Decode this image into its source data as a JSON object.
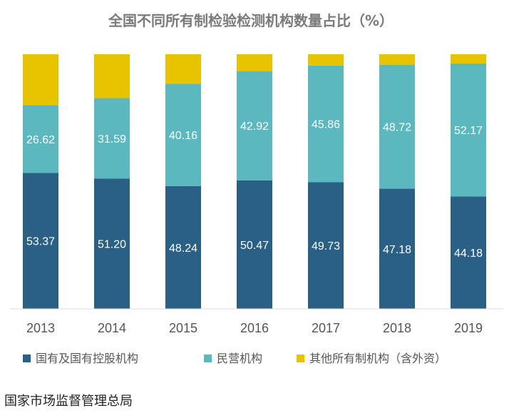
{
  "source": "国家市场监督管理总局",
  "chart_data": {
    "type": "bar",
    "stacked": true,
    "title": "全国不同所有制检验检测机构数量占比（%）",
    "categories": [
      "2013",
      "2014",
      "2015",
      "2016",
      "2017",
      "2018",
      "2019"
    ],
    "ylim": [
      0,
      100
    ],
    "grid": false,
    "legend_position": "bottom",
    "series": [
      {
        "name": "国有及国有控股机构",
        "color": "#2a5f86",
        "values": [
          53.37,
          51.2,
          48.24,
          50.47,
          49.73,
          47.18,
          44.18
        ],
        "labels": [
          "53.37",
          "51.20",
          "48.24",
          "50.47",
          "49.73",
          "47.18",
          "44.18"
        ]
      },
      {
        "name": "民营机构",
        "color": "#5bb8bf",
        "values": [
          26.62,
          31.59,
          40.16,
          42.92,
          45.86,
          48.72,
          52.17
        ],
        "labels": [
          "26.62",
          "31.59",
          "40.16",
          "42.92",
          "45.86",
          "48.72",
          "52.17"
        ]
      },
      {
        "name": "其他所有制机构（含外资）",
        "color": "#e8c400",
        "values": [
          20.01,
          17.21,
          11.6,
          6.61,
          4.41,
          4.1,
          3.65
        ],
        "labels": [
          "",
          "",
          "",
          "",
          "",
          "",
          ""
        ]
      }
    ]
  }
}
